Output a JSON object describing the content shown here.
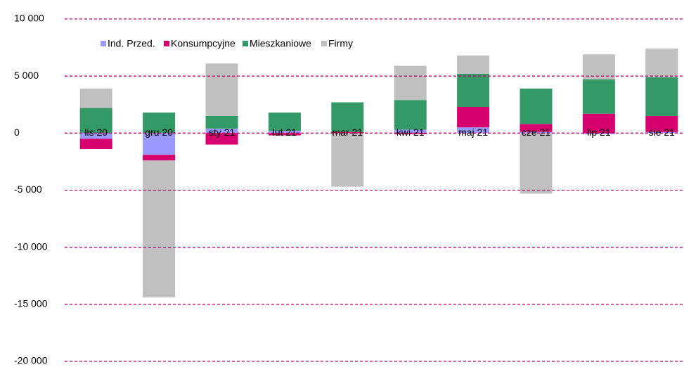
{
  "chart_data": {
    "type": "stacked_bar",
    "categories": [
      "lis 20",
      "gru 20",
      "sty 21",
      "lut 21",
      "mar 21",
      "kwi 21",
      "maj 21",
      "cze 21",
      "lip 21",
      "sie 21"
    ],
    "series": [
      {
        "name": "Ind. Przed.",
        "color": "#9999ff",
        "values": [
          -500,
          -1900,
          400,
          200,
          0,
          300,
          500,
          100,
          -100,
          100
        ]
      },
      {
        "name": "Konsumpcyjne",
        "color": "#d6006e",
        "values": [
          -900,
          -500,
          -1000,
          -200,
          100,
          -100,
          1800,
          700,
          1700,
          1400
        ]
      },
      {
        "name": "Mieszkaniowe",
        "color": "#339966",
        "values": [
          2200,
          1800,
          1100,
          1600,
          2600,
          2600,
          2900,
          3100,
          3000,
          3400
        ]
      },
      {
        "name": "Firmy",
        "color": "#c0c0c0",
        "values": [
          1700,
          -12000,
          4600,
          0,
          -4700,
          3000,
          1600,
          -5300,
          2200,
          2500
        ]
      }
    ],
    "ylim": [
      -20000,
      10000
    ],
    "yticks": [
      {
        "value": -20000,
        "label": "-20 000"
      },
      {
        "value": -15000,
        "label": "-15 000"
      },
      {
        "value": -10000,
        "label": "-10 000"
      },
      {
        "value": -5000,
        "label": "-5 000"
      },
      0,
      {
        "value": 5000,
        "label": "5 000"
      },
      {
        "value": 10000,
        "label": "10 000"
      }
    ],
    "grid": true,
    "grid_color": "#c8006e",
    "legend": "top-left"
  }
}
